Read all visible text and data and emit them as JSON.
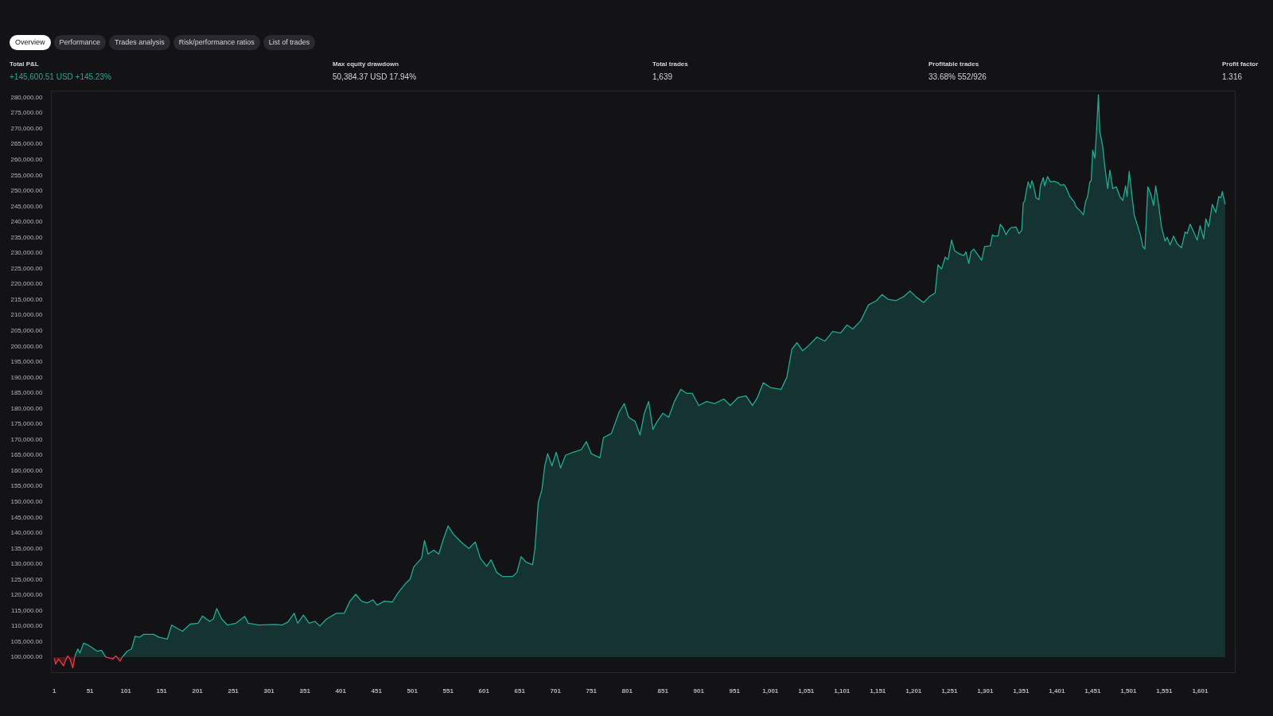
{
  "chart_data": {
    "type": "area",
    "annotations": [
      "Overview",
      "Performance",
      "Trades analysis",
      "Risk/performance ratios",
      "List of trades",
      "Total P&L",
      "+145,600.51 USD +145.23%",
      "Max equity drawdown",
      "50,384.37 USD 17.94%",
      "Total trades",
      "1,639",
      "Profitable trades",
      "33.68% 552/926",
      "Profit factor",
      "1.316"
    ],
    "xlim": [
      -3,
      1650
    ],
    "xticks": [
      1,
      51,
      101,
      151,
      201,
      251,
      301,
      351,
      401,
      451,
      501,
      551,
      601,
      651,
      701,
      751,
      801,
      851,
      901,
      951,
      {
        "value": 1001,
        "label": "1,001"
      },
      {
        "value": 1051,
        "label": "1,051"
      },
      {
        "value": 1101,
        "label": "1,101"
      },
      {
        "value": 1151,
        "label": "1,151"
      },
      {
        "value": 1201,
        "label": "1,201"
      },
      {
        "value": 1251,
        "label": "1,251"
      },
      {
        "value": 1301,
        "label": "1,301"
      },
      {
        "value": 1351,
        "label": "1,351"
      },
      {
        "value": 1401,
        "label": "1,401"
      },
      {
        "value": 1451,
        "label": "1,451"
      },
      {
        "value": 1501,
        "label": "1,501"
      },
      {
        "value": 1551,
        "label": "1,551"
      },
      {
        "value": 1601,
        "label": "1,601"
      }
    ],
    "ylim": [
      95000,
      282000
    ],
    "yticks": [
      {
        "value": 100000,
        "label": "100,000.00"
      },
      {
        "value": 105000,
        "label": "105,000.00"
      },
      {
        "value": 110000,
        "label": "110,000.00"
      },
      {
        "value": 115000,
        "label": "115,000.00"
      },
      {
        "value": 120000,
        "label": "120,000.00"
      },
      {
        "value": 125000,
        "label": "125,000.00"
      },
      {
        "value": 130000,
        "label": "130,000.00"
      },
      {
        "value": 135000,
        "label": "135,000.00"
      },
      {
        "value": 140000,
        "label": "140,000.00"
      },
      {
        "value": 145000,
        "label": "145,000.00"
      },
      {
        "value": 150000,
        "label": "150,000.00"
      },
      {
        "value": 155000,
        "label": "155,000.00"
      },
      {
        "value": 160000,
        "label": "160,000.00"
      },
      {
        "value": 165000,
        "label": "165,000.00"
      },
      {
        "value": 170000,
        "label": "170,000.00"
      },
      {
        "value": 175000,
        "label": "175,000.00"
      },
      {
        "value": 180000,
        "label": "180,000.00"
      },
      {
        "value": 185000,
        "label": "185,000.00"
      },
      {
        "value": 190000,
        "label": "190,000.00"
      },
      {
        "value": 195000,
        "label": "195,000.00"
      },
      {
        "value": 200000,
        "label": "200,000.00"
      },
      {
        "value": 205000,
        "label": "205,000.00"
      },
      {
        "value": 210000,
        "label": "210,000.00"
      },
      {
        "value": 215000,
        "label": "215,000.00"
      },
      {
        "value": 220000,
        "label": "220,000.00"
      },
      {
        "value": 225000,
        "label": "225,000.00"
      },
      {
        "value": 230000,
        "label": "230,000.00"
      },
      {
        "value": 235000,
        "label": "235,000.00"
      },
      {
        "value": 240000,
        "label": "240,000.00"
      },
      {
        "value": 245000,
        "label": "245,000.00"
      },
      {
        "value": 250000,
        "label": "250,000.00"
      },
      {
        "value": 255000,
        "label": "255,000.00"
      },
      {
        "value": 260000,
        "label": "260,000.00"
      },
      {
        "value": 265000,
        "label": "265,000.00"
      },
      {
        "value": 270000,
        "label": "270,000.00"
      },
      {
        "value": 275000,
        "label": "275,000.00"
      },
      {
        "value": 280000,
        "label": "280,000.00"
      }
    ],
    "series": [
      {
        "color": "#f23645",
        "x": [
          1,
          3,
          7,
          14,
          17,
          20,
          23,
          27,
          30,
          50,
          73,
          83,
          87,
          93,
          96
        ],
        "values": [
          99700,
          97800,
          99400,
          97200,
          99000,
          100400,
          99400,
          96500,
          100400,
          null,
          100000,
          99400,
          100400,
          98700,
          100000
        ]
      },
      {
        "color": "#22ab94",
        "x": [
          30,
          34,
          37,
          42,
          48,
          53,
          61,
          67,
          73,
          83,
          96,
          103,
          109,
          114,
          120,
          126,
          140,
          147,
          159,
          165,
          180,
          191,
          202,
          208,
          218,
          223,
          228,
          235,
          243,
          255,
          267,
          272,
          287,
          309,
          319,
          327,
          336,
          341,
          349,
          357,
          365,
          372,
          381,
          395,
          406,
          414,
          422,
          430,
          438,
          446,
          452,
          462,
          473,
          481,
          492,
          498,
          503,
          514,
          518,
          523,
          531,
          538,
          545,
          551,
          558,
          569,
          580,
          589,
          596,
          605,
          611,
          619,
          627,
          641,
          647,
          653,
          660,
          669,
          672,
          677,
          682,
          686,
          690,
          696,
          702,
          708,
          715,
          726,
          737,
          744,
          751,
          763,
          768,
          779,
          790,
          797,
          803,
          812,
          819,
          825,
          831,
          837,
          843,
          851,
          859,
          867,
          876,
          884,
          892,
          901,
          912,
          923,
          936,
          945,
          956,
          967,
          976,
          983,
          991,
          1002,
          1016,
          1024,
          1031,
          1038,
          1046,
          1055,
          1066,
          1077,
          1088,
          1099,
          1108,
          1116,
          1127,
          1138,
          1149,
          1157,
          1165,
          1176,
          1187,
          1196,
          1204,
          1215,
          1223,
          1231,
          1235,
          1240,
          1245,
          1249,
          1254,
          1258,
          1263,
          1271,
          1274,
          1278,
          1281,
          1285,
          1290,
          1296,
          1300,
          1308,
          1311,
          1313,
          1319,
          1322,
          1326,
          1330,
          1333,
          1337,
          1344,
          1348,
          1352,
          1354,
          1356,
          1359,
          1361,
          1364,
          1366,
          1368,
          1372,
          1376,
          1378,
          1382,
          1384,
          1388,
          1392,
          1397,
          1403,
          1406,
          1411,
          1414,
          1419,
          1425,
          1428,
          1434,
          1438,
          1441,
          1444,
          1447,
          1449,
          1451,
          1454,
          1456,
          1459,
          1461,
          1465,
          1468,
          1472,
          1475,
          1479,
          1484,
          1489,
          1493,
          1497,
          1499,
          1502,
          1506,
          1509,
          1513,
          1518,
          1521,
          1524,
          1528,
          1532,
          1536,
          1539,
          1543,
          1547,
          1552,
          1555,
          1559,
          1564,
          1569,
          1575,
          1580,
          1583,
          1587,
          1592,
          1597,
          1601,
          1606,
          1609,
          1613,
          1618,
          1623,
          1627,
          1630,
          1632,
          1636
        ],
        "values": [
          100400,
          102600,
          101300,
          104500,
          103900,
          103200,
          101900,
          102200,
          100000,
          null,
          100000,
          101900,
          102600,
          106700,
          106400,
          107300,
          107300,
          106400,
          105800,
          110300,
          108300,
          110600,
          110900,
          113200,
          111500,
          112200,
          115600,
          112200,
          110300,
          110900,
          113100,
          110900,
          110300,
          110500,
          110300,
          111200,
          114100,
          110900,
          113500,
          110900,
          111500,
          110000,
          112200,
          114100,
          114100,
          118000,
          120200,
          118000,
          117400,
          118400,
          116700,
          118000,
          117700,
          120600,
          123800,
          125100,
          129000,
          131800,
          137500,
          133100,
          134400,
          133100,
          138300,
          142200,
          139600,
          137000,
          134900,
          137000,
          131800,
          129200,
          131300,
          127200,
          125900,
          125900,
          127200,
          132300,
          130500,
          129700,
          134400,
          149900,
          153800,
          161500,
          165400,
          161500,
          165900,
          160800,
          164900,
          165900,
          166700,
          169300,
          165400,
          164100,
          170600,
          171900,
          178900,
          181500,
          177100,
          175800,
          171400,
          178400,
          182200,
          173200,
          175800,
          178400,
          177100,
          182200,
          186100,
          184800,
          184800,
          180900,
          182200,
          181500,
          183000,
          180900,
          183500,
          184000,
          180900,
          183500,
          188200,
          186600,
          186100,
          190000,
          199000,
          201100,
          198500,
          200300,
          202900,
          201600,
          204700,
          204200,
          206800,
          205500,
          208100,
          213300,
          214600,
          216600,
          215100,
          214600,
          215900,
          217700,
          215900,
          214000,
          215900,
          217100,
          226100,
          224800,
          228600,
          227800,
          234100,
          230800,
          229900,
          229100,
          230300,
          226500,
          230300,
          231200,
          229500,
          227600,
          232000,
          232200,
          235800,
          235400,
          235400,
          239200,
          238000,
          235800,
          237100,
          238100,
          238300,
          236200,
          237200,
          246000,
          246600,
          250700,
          252800,
          250700,
          253200,
          252000,
          247700,
          247100,
          251500,
          254200,
          251500,
          254500,
          252800,
          253000,
          252500,
          251700,
          252000,
          250900,
          248100,
          246400,
          244700,
          243400,
          242200,
          246400,
          248100,
          252800,
          253200,
          263000,
          260400,
          267600,
          280800,
          268900,
          264200,
          257500,
          250700,
          256600,
          250700,
          251200,
          248100,
          246800,
          251500,
          248100,
          256200,
          248100,
          242200,
          239200,
          235400,
          232000,
          231200,
          251200,
          249000,
          245200,
          251500,
          245600,
          238400,
          233800,
          235000,
          232500,
          235400,
          232900,
          231600,
          236700,
          236200,
          239200,
          236700,
          234100,
          238700,
          234500,
          240900,
          238400,
          245600,
          243000,
          248100,
          247700,
          249700,
          245600
        ]
      }
    ]
  }
}
